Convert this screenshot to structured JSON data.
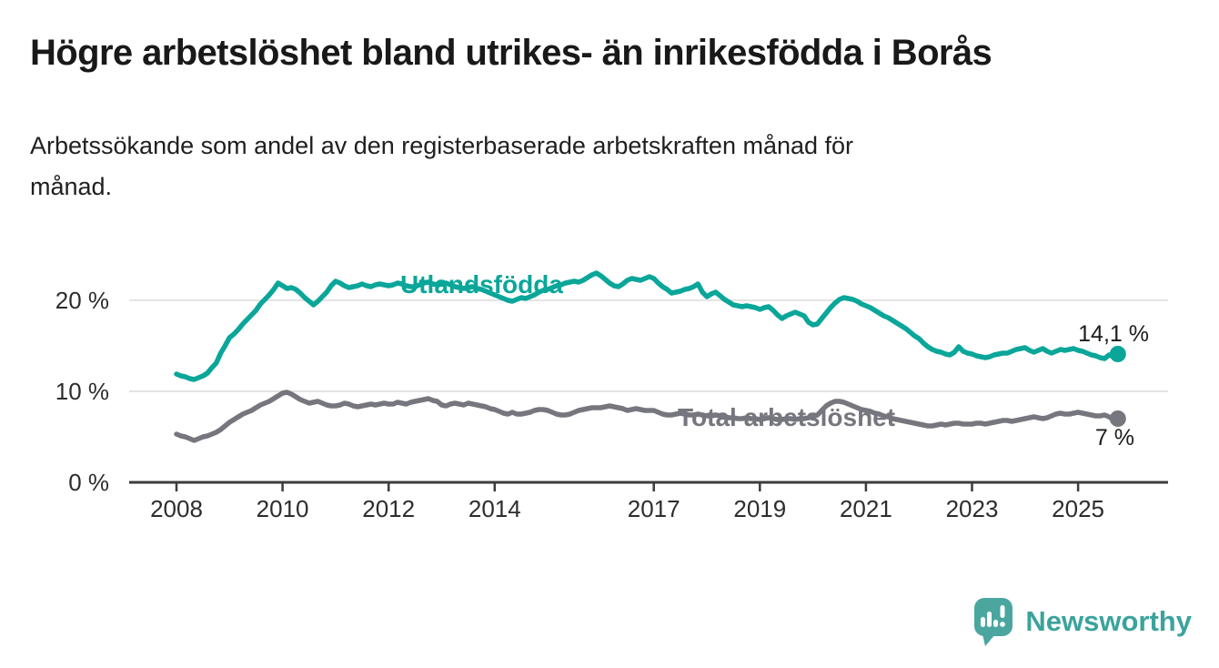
{
  "page": {
    "title": "Högre arbetslöshet bland utrikes- än inrikesfödda i Borås",
    "subtitle": "Arbetssökande som andel av den registerbaserade arbetskraften månad för månad."
  },
  "branding": {
    "name": "Newsworthy",
    "logo_icon": "bar-chart-speech-bubble",
    "color": "#3ba39c"
  },
  "chart_data": {
    "type": "line",
    "title": "Högre arbetslöshet bland utrikes- än inrikesfödda i Borås",
    "subtitle": "Arbetssökande som andel av den registerbaserade arbetskraften månad för månad.",
    "grid": "horizontal-only",
    "legend_position": "inline-labels",
    "x_axis": {
      "start_year": 2008,
      "interval_months": 1,
      "tick_years": [
        2008,
        2010,
        2012,
        2014,
        2017,
        2019,
        2021,
        2023,
        2025
      ]
    },
    "y_axis": {
      "ticks": [
        {
          "value": 0,
          "label": "0 %"
        },
        {
          "value": 10,
          "label": "10 %"
        },
        {
          "value": 20,
          "label": "20 %"
        }
      ],
      "range": [
        0,
        24
      ]
    },
    "series": [
      {
        "name": "Utlandsfödda",
        "color": "#0ba69a",
        "end_label": "14,1 %",
        "end_value": 14.1,
        "values": [
          11.9,
          11.7,
          11.6,
          11.4,
          11.3,
          11.5,
          11.7,
          12.0,
          12.6,
          13.1,
          14.2,
          15.0,
          15.9,
          16.3,
          16.8,
          17.4,
          17.9,
          18.4,
          18.9,
          19.6,
          20.1,
          20.6,
          21.2,
          21.9,
          21.6,
          21.3,
          21.4,
          21.2,
          20.8,
          20.3,
          19.9,
          19.5,
          19.9,
          20.4,
          20.9,
          21.6,
          22.1,
          21.9,
          21.6,
          21.4,
          21.5,
          21.6,
          21.8,
          21.6,
          21.5,
          21.7,
          21.8,
          21.7,
          21.6,
          21.7,
          21.9,
          21.8,
          21.6,
          21.5,
          21.5,
          21.7,
          21.9,
          22.0,
          21.8,
          21.7,
          21.8,
          21.9,
          21.7,
          21.5,
          21.4,
          21.3,
          21.4,
          21.5,
          21.3,
          21.2,
          21.0,
          20.8,
          20.6,
          20.4,
          20.2,
          20.0,
          19.9,
          20.1,
          20.3,
          20.2,
          20.4,
          20.6,
          20.9,
          21.1,
          21.2,
          21.4,
          21.6,
          21.7,
          21.9,
          22.0,
          22.1,
          22.0,
          22.2,
          22.5,
          22.8,
          23.0,
          22.7,
          22.3,
          21.9,
          21.6,
          21.5,
          21.8,
          22.2,
          22.4,
          22.3,
          22.2,
          22.4,
          22.6,
          22.4,
          21.9,
          21.5,
          21.2,
          20.8,
          20.9,
          21.0,
          21.2,
          21.3,
          21.5,
          21.8,
          20.9,
          20.4,
          20.7,
          20.9,
          20.5,
          20.1,
          19.8,
          19.5,
          19.4,
          19.3,
          19.4,
          19.3,
          19.2,
          19.0,
          19.2,
          19.3,
          18.9,
          18.4,
          18.0,
          18.3,
          18.5,
          18.7,
          18.5,
          18.3,
          17.6,
          17.3,
          17.4,
          18.0,
          18.6,
          19.2,
          19.7,
          20.1,
          20.3,
          20.2,
          20.1,
          19.9,
          19.6,
          19.4,
          19.2,
          18.9,
          18.6,
          18.3,
          18.1,
          17.8,
          17.5,
          17.2,
          16.9,
          16.5,
          16.1,
          15.8,
          15.3,
          14.9,
          14.6,
          14.4,
          14.3,
          14.1,
          14.0,
          14.3,
          14.9,
          14.4,
          14.2,
          14.1,
          13.9,
          13.8,
          13.7,
          13.8,
          14.0,
          14.1,
          14.2,
          14.2,
          14.4,
          14.6,
          14.7,
          14.8,
          14.5,
          14.3,
          14.5,
          14.7,
          14.4,
          14.2,
          14.4,
          14.6,
          14.5,
          14.6,
          14.7,
          14.5,
          14.4,
          14.2,
          14.0,
          13.9,
          13.7,
          13.6,
          14.0,
          13.9,
          14.1
        ]
      },
      {
        "name": "Total arbetslöshet",
        "color": "#76767e",
        "end_label": "7 %",
        "end_value": 7.0,
        "values": [
          5.3,
          5.1,
          5.0,
          4.8,
          4.6,
          4.8,
          5.0,
          5.1,
          5.3,
          5.5,
          5.8,
          6.2,
          6.6,
          6.9,
          7.2,
          7.5,
          7.7,
          7.9,
          8.2,
          8.5,
          8.7,
          8.9,
          9.2,
          9.5,
          9.8,
          9.9,
          9.7,
          9.4,
          9.1,
          8.9,
          8.7,
          8.8,
          8.9,
          8.7,
          8.5,
          8.4,
          8.4,
          8.5,
          8.7,
          8.6,
          8.4,
          8.3,
          8.4,
          8.5,
          8.6,
          8.5,
          8.6,
          8.7,
          8.6,
          8.6,
          8.8,
          8.7,
          8.6,
          8.8,
          8.9,
          9.0,
          9.1,
          9.2,
          9.0,
          8.9,
          8.5,
          8.4,
          8.6,
          8.7,
          8.6,
          8.5,
          8.7,
          8.6,
          8.5,
          8.4,
          8.3,
          8.1,
          8.0,
          7.8,
          7.6,
          7.5,
          7.7,
          7.5,
          7.5,
          7.6,
          7.7,
          7.9,
          8.0,
          8.0,
          7.9,
          7.7,
          7.5,
          7.4,
          7.4,
          7.5,
          7.7,
          7.9,
          8.0,
          8.1,
          8.2,
          8.2,
          8.2,
          8.3,
          8.4,
          8.3,
          8.2,
          8.1,
          7.9,
          8.0,
          8.1,
          8.0,
          7.9,
          7.9,
          7.9,
          7.7,
          7.5,
          7.4,
          7.4,
          7.5,
          7.6,
          7.5,
          7.4,
          7.4,
          7.5,
          7.4,
          7.3,
          7.3,
          7.4,
          7.3,
          7.2,
          7.1,
          7.1,
          7.0,
          7.0,
          7.1,
          7.0,
          7.0,
          6.9,
          7.0,
          7.1,
          7.0,
          6.9,
          6.9,
          7.0,
          7.0,
          6.9,
          7.0,
          7.0,
          7.1,
          7.2,
          7.4,
          7.9,
          8.4,
          8.7,
          8.9,
          8.9,
          8.8,
          8.6,
          8.4,
          8.2,
          8.0,
          7.9,
          7.8,
          7.6,
          7.5,
          7.3,
          7.2,
          7.0,
          6.9,
          6.8,
          6.7,
          6.6,
          6.5,
          6.4,
          6.3,
          6.2,
          6.2,
          6.3,
          6.4,
          6.3,
          6.4,
          6.5,
          6.5,
          6.4,
          6.4,
          6.4,
          6.5,
          6.5,
          6.4,
          6.5,
          6.6,
          6.7,
          6.8,
          6.8,
          6.7,
          6.8,
          6.9,
          7.0,
          7.1,
          7.2,
          7.1,
          7.0,
          7.1,
          7.3,
          7.5,
          7.6,
          7.5,
          7.5,
          7.6,
          7.7,
          7.6,
          7.5,
          7.4,
          7.3,
          7.3,
          7.4,
          7.2,
          6.9,
          7.0
        ]
      }
    ]
  }
}
